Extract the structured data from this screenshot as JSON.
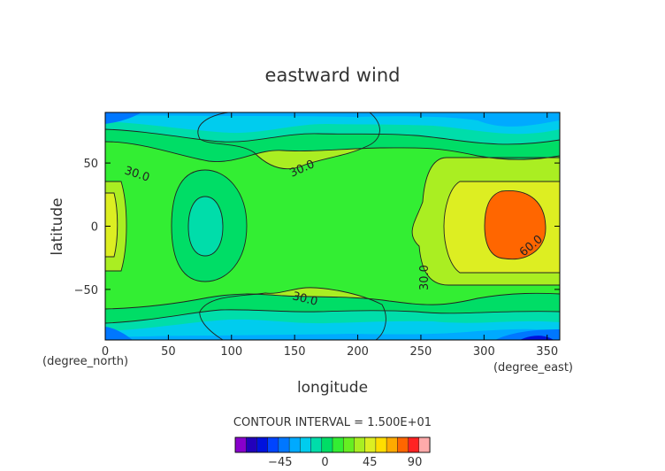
{
  "chart_data": {
    "type": "heatmap",
    "title": "eastward wind",
    "xlabel": "longitude",
    "ylabel": "latitude",
    "x_unit": "(degree_east)",
    "y_unit": "(degree_north)",
    "xlim": [
      0,
      360
    ],
    "ylim": [
      -90,
      90
    ],
    "x_ticks": [
      0,
      50,
      100,
      150,
      200,
      250,
      300,
      350
    ],
    "y_ticks": [
      -50,
      0,
      50
    ],
    "contour_interval_text": "CONTOUR INTERVAL = 1.500E+01",
    "contour_labels": [
      "30.0",
      "30.0",
      "30.0",
      "30.0",
      "60.0"
    ],
    "colorbar": {
      "ticks": [
        -45,
        0,
        45,
        90
      ],
      "range": [
        -90,
        105
      ],
      "colors": [
        "#8800cc",
        "#2200bb",
        "#0011dd",
        "#0044ff",
        "#0077ff",
        "#00aaff",
        "#00ccee",
        "#00ddaa",
        "#00dd66",
        "#33ee33",
        "#66ee22",
        "#aaee22",
        "#ddee22",
        "#ffdd00",
        "#ffaa00",
        "#ff6600",
        "#ff2222",
        "#ffaaaa"
      ]
    },
    "grid": false,
    "legend": "bottom-center colorbar"
  }
}
